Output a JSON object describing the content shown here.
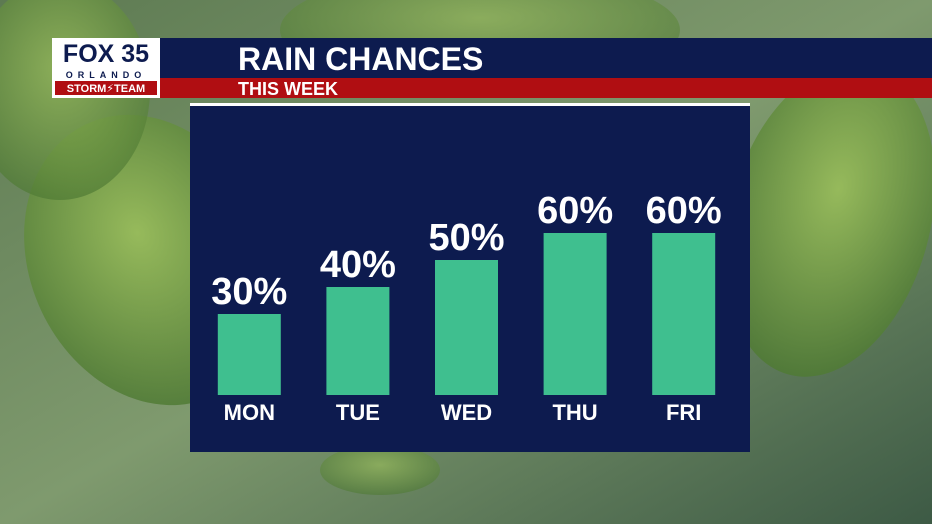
{
  "logo": {
    "brand": "FOX 35",
    "city": "ORLANDO",
    "team": "STORM⚡TEAM"
  },
  "chart_data": {
    "type": "bar",
    "title": "RAIN CHANCES",
    "subtitle": "THIS WEEK",
    "categories": [
      "MON",
      "TUE",
      "WED",
      "THU",
      "FRI"
    ],
    "values": [
      30,
      40,
      50,
      60,
      60
    ],
    "value_labels": [
      "30%",
      "40%",
      "50%",
      "60%",
      "60%"
    ],
    "color": "#3fbf8f"
  }
}
